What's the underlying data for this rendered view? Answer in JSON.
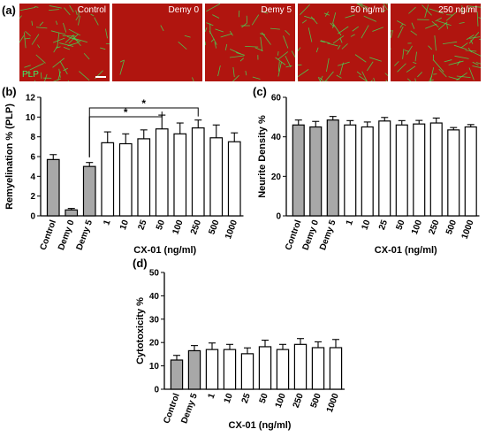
{
  "panel_labels": {
    "a": "(a)",
    "b": "(b)",
    "c": "(c)",
    "d": "(d)"
  },
  "micrographs": {
    "labels": [
      "Control",
      "Demy 0",
      "Demy 5",
      "50 ng/ml",
      "250 ng/ml"
    ],
    "stain_label": "PLP",
    "colors": {
      "background": "#b0150f",
      "stain": "#3ee05a"
    }
  },
  "colors": {
    "control_bar": "#a8a8a8",
    "treatment_bar": "#ffffff",
    "stroke": "#000000"
  },
  "chart_data": [
    {
      "type": "bar",
      "title": "",
      "ylabel": "Remyelination % (PLP)",
      "xlabel": "CX-01 (ng/ml)",
      "ylim": [
        0,
        12
      ],
      "yticks": [
        0,
        2,
        4,
        6,
        8,
        10,
        12
      ],
      "categories": [
        "Control",
        "Demy 0",
        "Demy 5",
        "1",
        "10",
        "25",
        "50",
        "100",
        "250",
        "500",
        "1000"
      ],
      "values": [
        5.7,
        0.6,
        5.0,
        7.4,
        7.3,
        7.8,
        8.8,
        8.3,
        8.9,
        7.9,
        7.5
      ],
      "errors": [
        0.5,
        0.15,
        0.4,
        1.1,
        1.0,
        0.9,
        1.4,
        1.1,
        0.8,
        1.3,
        0.9
      ],
      "filled": [
        true,
        true,
        true,
        false,
        false,
        false,
        false,
        false,
        false,
        false,
        false
      ],
      "significance": [
        {
          "from": "Demy 5",
          "to": "50",
          "label": "*"
        },
        {
          "from": "Demy 5",
          "to": "250",
          "label": "*"
        }
      ],
      "grid": false,
      "error_bars": "SEM"
    },
    {
      "type": "bar",
      "title": "",
      "ylabel": "Neurite Density %",
      "xlabel": "CX-01 (ng/ml)",
      "ylim": [
        0,
        60
      ],
      "yticks": [
        0,
        20,
        40,
        60
      ],
      "categories": [
        "Control",
        "Demy 0",
        "Demy 5",
        "1",
        "10",
        "25",
        "50",
        "100",
        "250",
        "500",
        "1000"
      ],
      "values": [
        46,
        45,
        48.5,
        46,
        45,
        48,
        46,
        46.5,
        47,
        43.5,
        45
      ],
      "errors": [
        2.5,
        2.8,
        1.8,
        2.2,
        2.5,
        1.8,
        2.2,
        1.8,
        2.5,
        1.2,
        1.2
      ],
      "filled": [
        true,
        true,
        true,
        false,
        false,
        false,
        false,
        false,
        false,
        false,
        false
      ],
      "grid": false
    },
    {
      "type": "bar",
      "title": "",
      "ylabel": "Cytotoxicity %",
      "xlabel": "CX-01 (ng/ml)",
      "ylim": [
        0,
        50
      ],
      "yticks": [
        0,
        10,
        20,
        30,
        40,
        50
      ],
      "categories": [
        "Control",
        "Demy 5",
        "1",
        "10",
        "25",
        "50",
        "100",
        "250",
        "500",
        "1000"
      ],
      "values": [
        12.5,
        16.5,
        17,
        17,
        15.2,
        18.2,
        17,
        19.2,
        17.8,
        17.8
      ],
      "errors": [
        2,
        2.2,
        2.8,
        2.2,
        2.5,
        2.8,
        2.2,
        2.5,
        2.5,
        3.5
      ],
      "filled": [
        true,
        true,
        false,
        false,
        false,
        false,
        false,
        false,
        false,
        false
      ],
      "grid": false
    }
  ]
}
